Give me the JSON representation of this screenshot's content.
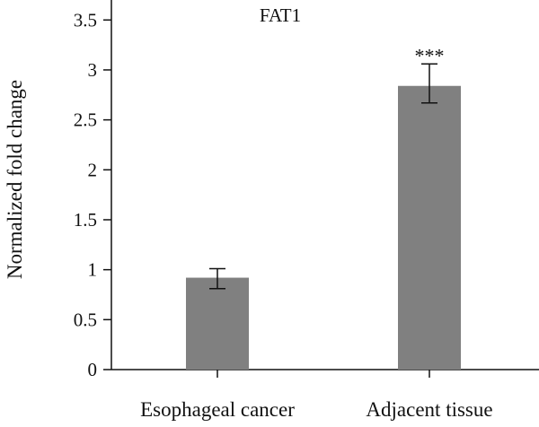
{
  "chart_data": {
    "type": "bar",
    "title": "FAT1",
    "xlabel": "",
    "ylabel": "Normalized fold change",
    "ylim": [
      0,
      3.7
    ],
    "yticks": [
      "0",
      "0.5",
      "1",
      "1.5",
      "2",
      "2.5",
      "3",
      "3.5"
    ],
    "categories": [
      "Esophageal cancer",
      "Adjacent tissue"
    ],
    "values": [
      0.92,
      2.84
    ],
    "error_low": [
      0.81,
      2.67
    ],
    "error_high": [
      1.01,
      3.06
    ],
    "annotations": [
      "",
      "***"
    ],
    "colors": {
      "bar": "#808080",
      "axis": "#111111"
    },
    "grid": false,
    "legend": "none"
  }
}
